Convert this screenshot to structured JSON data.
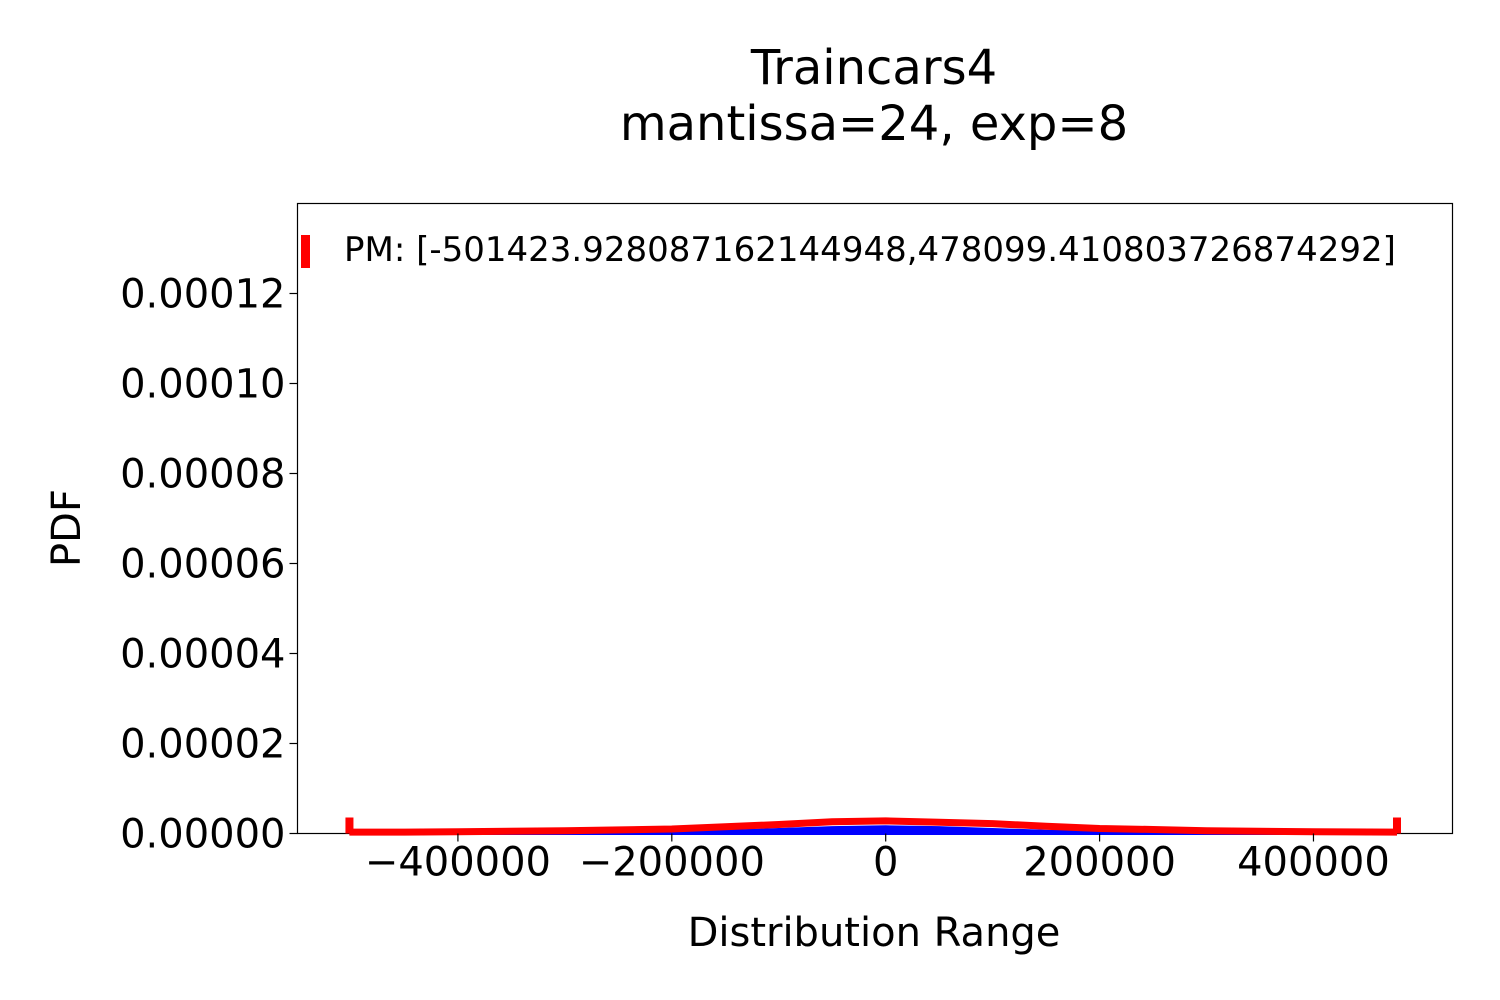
{
  "chart_data": {
    "type": "line",
    "title": "Traincars4",
    "subtitle": "mantissa=24, exp=8",
    "xlabel": "Distribution Range",
    "ylabel": "PDF",
    "xlim": [
      -550000,
      530000
    ],
    "ylim": [
      0,
      0.00014
    ],
    "xticks": [
      -400000,
      -200000,
      0,
      200000,
      400000
    ],
    "xtick_labels": [
      "−400000",
      "−200000",
      "0",
      "200000",
      "400000"
    ],
    "yticks": [
      0,
      2e-05,
      4e-05,
      6e-05,
      8e-05,
      0.0001,
      0.00012
    ],
    "ytick_labels": [
      "0.00000",
      "0.00002",
      "0.00004",
      "0.00006",
      "0.00008",
      "0.00010",
      "0.00012"
    ],
    "grid": false,
    "legend": {
      "placement": "top-left",
      "entries": [
        {
          "label": "PM: [-501423.928087162144948,478099.410803726874292]",
          "color": "#ff0000"
        }
      ]
    },
    "series": [
      {
        "color": "#0000ff",
        "x": [
          -501424,
          -400000,
          -300000,
          -200000,
          -150000,
          -100000,
          -50000,
          0,
          50000,
          100000,
          150000,
          200000,
          300000,
          400000,
          478099
        ],
        "y": [
          0,
          0,
          1e-07,
          3e-07,
          5e-07,
          9e-07,
          1.3e-06,
          1.5e-06,
          1.3e-06,
          9e-07,
          5e-07,
          3e-07,
          1e-07,
          0,
          0
        ]
      },
      {
        "name": "PM: [-501423.928087162144948,478099.410803726874292]",
        "color": "#ff0000",
        "x": [
          -501424,
          -450000,
          -400000,
          -300000,
          -200000,
          -150000,
          -100000,
          -50000,
          0,
          50000,
          100000,
          150000,
          200000,
          250000,
          300000,
          400000,
          478099
        ],
        "y": [
          3e-07,
          3e-07,
          4e-07,
          6e-07,
          1e-06,
          1.5e-06,
          2e-06,
          2.6e-06,
          2.8e-06,
          2.5e-06,
          2.2e-06,
          1.6e-06,
          1.1e-06,
          9e-07,
          6e-07,
          4e-07,
          3e-07
        ]
      }
    ],
    "markers": [
      {
        "x": -501424,
        "color": "#ff0000"
      },
      {
        "x": 478099,
        "color": "#ff0000"
      }
    ]
  }
}
